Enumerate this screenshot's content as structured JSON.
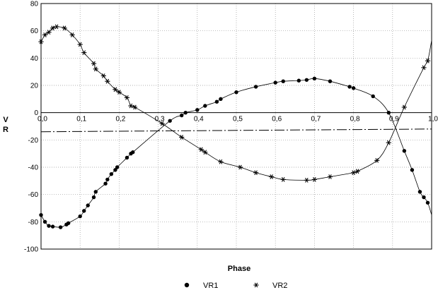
{
  "chart_data": {
    "type": "scatter",
    "title": "",
    "xlabel": "Phase",
    "ylabel": "V R",
    "xlim": [
      0.0,
      1.0
    ],
    "ylim": [
      -100,
      80
    ],
    "x_ticks": [
      0.0,
      0.1,
      0.2,
      0.3,
      0.4,
      0.5,
      0.6,
      0.7,
      0.8,
      0.9,
      1.0
    ],
    "x_tick_labels": [
      "0,0",
      "0,1",
      "0,2",
      "0,3",
      "0,4",
      "0,5",
      "0,6",
      "0,7",
      "0,8",
      "0,9",
      "1,0"
    ],
    "y_ticks": [
      -100,
      -80,
      -60,
      -40,
      -20,
      0,
      20,
      40,
      60,
      80
    ],
    "y_tick_labels": [
      "-100",
      "-80",
      "-60",
      "-40",
      "-20",
      "0",
      "20",
      "40",
      "60",
      "80"
    ],
    "grid": true,
    "legend_position": "bottom-center",
    "reference_line_y": 0,
    "systemic_velocity_line": {
      "y_at_x0": -14,
      "y_at_x1": -12,
      "style": "dash-dot"
    },
    "series": [
      {
        "name": "VR1",
        "marker": "filled-circle",
        "points": [
          [
            0.0,
            -75
          ],
          [
            0.01,
            -80
          ],
          [
            0.02,
            -83
          ],
          [
            0.03,
            -83.5
          ],
          [
            0.05,
            -84
          ],
          [
            0.065,
            -82
          ],
          [
            0.07,
            -81
          ],
          [
            0.1,
            -76
          ],
          [
            0.11,
            -72
          ],
          [
            0.12,
            -68
          ],
          [
            0.135,
            -62
          ],
          [
            0.14,
            -58
          ],
          [
            0.165,
            -52
          ],
          [
            0.17,
            -49
          ],
          [
            0.18,
            -45
          ],
          [
            0.19,
            -42
          ],
          [
            0.195,
            -40
          ],
          [
            0.22,
            -33
          ],
          [
            0.23,
            -30
          ],
          [
            0.235,
            -29
          ],
          [
            0.33,
            -6
          ],
          [
            0.36,
            -2
          ],
          [
            0.37,
            0
          ],
          [
            0.4,
            2
          ],
          [
            0.42,
            5
          ],
          [
            0.45,
            8
          ],
          [
            0.46,
            10
          ],
          [
            0.5,
            15
          ],
          [
            0.55,
            19
          ],
          [
            0.6,
            22
          ],
          [
            0.62,
            23
          ],
          [
            0.66,
            23.5
          ],
          [
            0.68,
            24
          ],
          [
            0.7,
            25
          ],
          [
            0.74,
            23
          ],
          [
            0.79,
            19
          ],
          [
            0.8,
            18
          ],
          [
            0.85,
            12
          ],
          [
            0.89,
            0
          ],
          [
            0.93,
            -28
          ],
          [
            0.95,
            -42
          ],
          [
            0.97,
            -58
          ],
          [
            0.98,
            -62
          ],
          [
            0.99,
            -66
          ]
        ]
      },
      {
        "name": "VR2",
        "marker": "asterisk",
        "points": [
          [
            0.0,
            52
          ],
          [
            0.01,
            57
          ],
          [
            0.02,
            59
          ],
          [
            0.03,
            62
          ],
          [
            0.04,
            63
          ],
          [
            0.06,
            62
          ],
          [
            0.08,
            57
          ],
          [
            0.1,
            50
          ],
          [
            0.11,
            44
          ],
          [
            0.135,
            36
          ],
          [
            0.14,
            32
          ],
          [
            0.16,
            27
          ],
          [
            0.17,
            23
          ],
          [
            0.19,
            17
          ],
          [
            0.2,
            15
          ],
          [
            0.22,
            11
          ],
          [
            0.23,
            5
          ],
          [
            0.24,
            4
          ],
          [
            0.31,
            -8
          ],
          [
            0.36,
            -18
          ],
          [
            0.41,
            -27
          ],
          [
            0.42,
            -29
          ],
          [
            0.46,
            -36
          ],
          [
            0.51,
            -40
          ],
          [
            0.55,
            -44
          ],
          [
            0.59,
            -47
          ],
          [
            0.62,
            -49
          ],
          [
            0.68,
            -49.5
          ],
          [
            0.7,
            -49
          ],
          [
            0.74,
            -47
          ],
          [
            0.8,
            -44
          ],
          [
            0.81,
            -43
          ],
          [
            0.86,
            -35
          ],
          [
            0.89,
            -22
          ],
          [
            0.93,
            4
          ],
          [
            0.98,
            33
          ],
          [
            0.99,
            38
          ]
        ]
      }
    ]
  },
  "legend": {
    "vr1_label": "VR1",
    "vr2_label": "VR2"
  }
}
